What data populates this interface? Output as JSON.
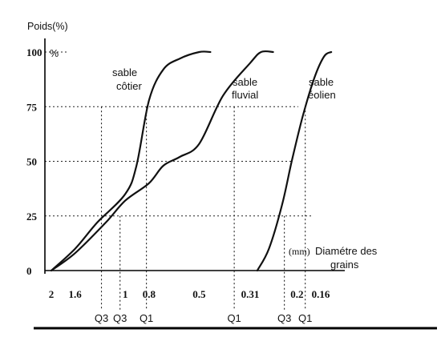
{
  "chart_data": {
    "type": "line",
    "title": "",
    "ylabel": "Poids(%)",
    "ylabel_unit_marker": "%",
    "xlabel_unit": "(mm)",
    "xlabel_line1": "Diamétre des",
    "xlabel_line2": "grains",
    "x_scale": "log",
    "x_direction": "decreasing",
    "ylim": [
      0,
      100
    ],
    "y_ticks": [
      "0",
      "25",
      "50",
      "75",
      "100"
    ],
    "y_tick_values": [
      0,
      25,
      50,
      75,
      100
    ],
    "x_ticks": [
      "2",
      "1.6",
      "1",
      "0.8",
      "0.5",
      "0.31",
      "0.2",
      "0.16"
    ],
    "x_tick_values": [
      2,
      1.6,
      1,
      0.8,
      0.5,
      0.31,
      0.2,
      0.16
    ],
    "grid": "dotted reference lines at 25, 50, 75",
    "series": [
      {
        "name": "sable côtier",
        "label_line1": "sable",
        "label_line2": "côtier",
        "x": [
          2.0,
          1.6,
          1.3,
          1.0,
          0.9,
          0.8,
          0.7,
          0.6,
          0.5,
          0.45
        ],
        "y": [
          0,
          10,
          22,
          35,
          48,
          78,
          92,
          97,
          100,
          100
        ]
      },
      {
        "name": "sable fluvial",
        "label_line1": "sable",
        "label_line2": "fluvial",
        "x": [
          2.0,
          1.6,
          1.2,
          1.0,
          0.8,
          0.7,
          0.6,
          0.5,
          0.4,
          0.31,
          0.28,
          0.25
        ],
        "y": [
          0,
          8,
          22,
          32,
          40,
          48,
          52,
          58,
          80,
          95,
          100,
          100
        ]
      },
      {
        "name": "sable éolien",
        "label_line1": "sable",
        "label_line2": "éolien",
        "x": [
          0.29,
          0.26,
          0.23,
          0.21,
          0.19,
          0.17,
          0.155,
          0.145
        ],
        "y": [
          0,
          10,
          30,
          50,
          70,
          88,
          98,
          100
        ]
      }
    ],
    "quartile_markers": [
      {
        "label": "Q3",
        "x": 1.25
      },
      {
        "label": "Q3",
        "x": 1.05
      },
      {
        "label": "Q1",
        "x": 0.82
      },
      {
        "label": "Q1",
        "x": 0.36
      },
      {
        "label": "Q3",
        "x": 0.225
      },
      {
        "label": "Q1",
        "x": 0.185
      }
    ]
  }
}
